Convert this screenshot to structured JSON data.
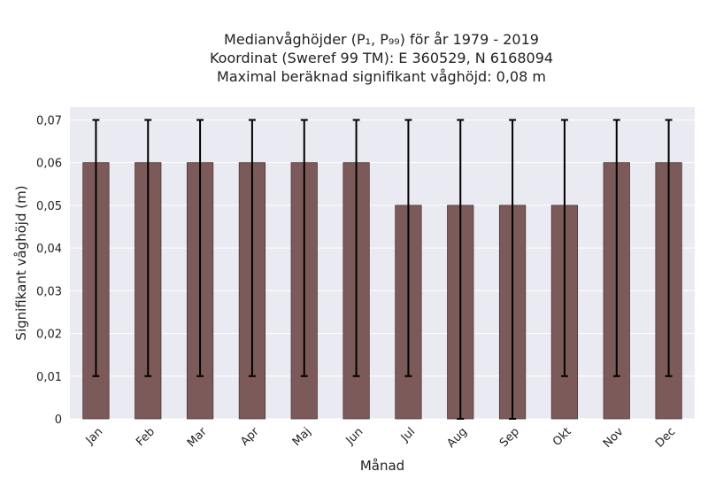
{
  "chart_data": {
    "type": "bar",
    "title_lines": [
      "Medianvåghöjder (P₁, P₉₉) för år 1979 - 2019",
      "Koordinat (Sweref 99 TM): E 360529, N 6168094",
      "Maximal beräknad signifikant våghöjd: 0,08 m"
    ],
    "xlabel": "Månad",
    "ylabel": "Signifikant våghöjd (m)",
    "categories": [
      "Jan",
      "Feb",
      "Mar",
      "Apr",
      "Maj",
      "Jun",
      "Jul",
      "Aug",
      "Sep",
      "Okt",
      "Nov",
      "Dec"
    ],
    "values": [
      0.06,
      0.06,
      0.06,
      0.06,
      0.06,
      0.06,
      0.05,
      0.05,
      0.05,
      0.05,
      0.06,
      0.06
    ],
    "error_low": [
      0.01,
      0.01,
      0.01,
      0.01,
      0.01,
      0.01,
      0.01,
      0.0,
      0.0,
      0.01,
      0.01,
      0.01
    ],
    "error_high": [
      0.07,
      0.07,
      0.07,
      0.07,
      0.07,
      0.07,
      0.07,
      0.07,
      0.07,
      0.07,
      0.07,
      0.07
    ],
    "ylim": [
      0,
      0.073
    ],
    "yticks": [
      0,
      0.01,
      0.02,
      0.03,
      0.04,
      0.05,
      0.06,
      0.07
    ],
    "ytick_labels": [
      "0",
      "0,01",
      "0,02",
      "0,03",
      "0,04",
      "0,05",
      "0,06",
      "0,07"
    ],
    "grid": true,
    "colors": {
      "bar": "#7d5a5a",
      "bar_edge": "#4a3434",
      "error_bar": "#000000",
      "plot_bg": "#eaeaf2",
      "grid": "#ffffff"
    }
  }
}
